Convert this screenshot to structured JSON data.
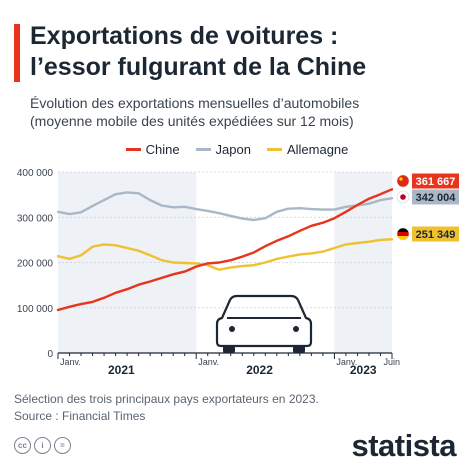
{
  "header": {
    "title_line1": "Exportations de voitures :",
    "title_line2": "l’essor fulgurant de la Chine",
    "subtitle_line1": "Évolution des exportations mensuelles d’automobiles",
    "subtitle_line2": "(moyenne mobile des unités expédiées sur 12 mois)"
  },
  "legend": [
    {
      "label": "Chine",
      "color": "#e8341c"
    },
    {
      "label": "Japon",
      "color": "#a9b8c7"
    },
    {
      "label": "Allemagne",
      "color": "#f0c12e"
    }
  ],
  "footer": {
    "note": "Sélection des trois principaux pays exportateurs en 2023.",
    "source": "Source : Financial Times",
    "brand": "statista",
    "license_icons": [
      "cc",
      "i",
      "="
    ]
  },
  "chart_data": {
    "type": "line",
    "y_ticks": [
      "400 000",
      "300 000",
      "200 000",
      "100 000",
      "0"
    ],
    "ylim": [
      0,
      400000
    ],
    "x_month_labels": [
      "Janv.",
      "Janv.",
      "Janv.",
      "Juin"
    ],
    "x_year_labels": [
      "2021",
      "2022",
      "2023"
    ],
    "x_months": 30,
    "x_label_months": [
      0,
      12,
      24,
      29
    ],
    "grid": true,
    "shaded_years": [
      "2021",
      "2023"
    ],
    "series": [
      {
        "name": "Chine",
        "color": "#e8341c",
        "end_label": "361 667",
        "flag": "china",
        "values": [
          95000,
          102000,
          108000,
          113000,
          122000,
          133000,
          141000,
          151000,
          158000,
          166000,
          174000,
          180000,
          191000,
          198000,
          200000,
          205000,
          213000,
          222000,
          236000,
          248000,
          258000,
          270000,
          281000,
          288000,
          298000,
          312000,
          327000,
          341000,
          351000,
          361667
        ]
      },
      {
        "name": "Japon",
        "color": "#a9b8c7",
        "end_label": "342 004",
        "flag": "japan",
        "values": [
          312000,
          307000,
          311000,
          325000,
          338000,
          351000,
          355000,
          353000,
          338000,
          326000,
          322000,
          323000,
          318000,
          314000,
          309000,
          303000,
          297000,
          294000,
          298000,
          312000,
          319000,
          320000,
          318000,
          317000,
          317000,
          323000,
          326000,
          330000,
          338000,
          342004
        ]
      },
      {
        "name": "Allemagne",
        "color": "#f0c12e",
        "end_label": "251 349",
        "flag": "germany",
        "values": [
          214000,
          208000,
          216000,
          235000,
          240000,
          238000,
          232000,
          226000,
          216000,
          205000,
          200000,
          199000,
          198000,
          194000,
          184000,
          189000,
          192000,
          194000,
          200000,
          208000,
          213000,
          218000,
          220000,
          224000,
          232000,
          240000,
          243000,
          246000,
          250000,
          251349
        ]
      }
    ]
  }
}
